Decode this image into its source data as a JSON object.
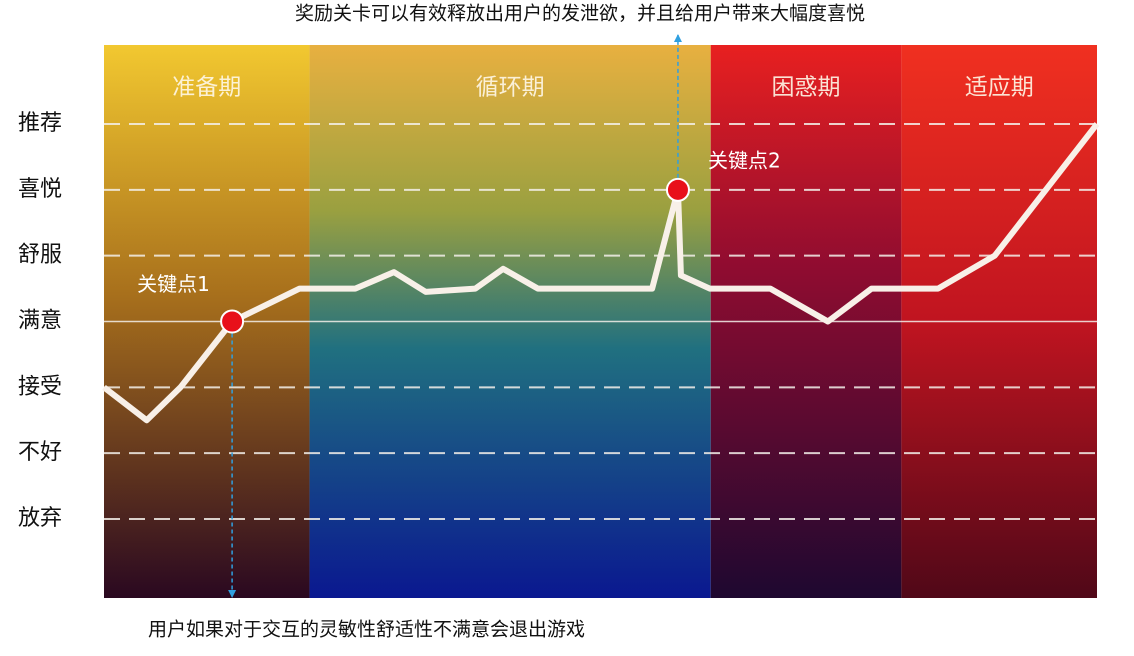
{
  "chart_data": {
    "type": "line",
    "xlim": [
      0,
      100
    ],
    "ylim": [
      -1.2,
      7.2
    ],
    "yticks": [
      {
        "value": 0,
        "label": "放弃"
      },
      {
        "value": 1,
        "label": "不好"
      },
      {
        "value": 2,
        "label": "接受"
      },
      {
        "value": 3,
        "label": "满意"
      },
      {
        "value": 4,
        "label": "舒服"
      },
      {
        "value": 5,
        "label": "喜悦"
      },
      {
        "value": 6,
        "label": "推荐"
      }
    ],
    "reference_line": 3,
    "phases": [
      {
        "name": "准备期",
        "start": 0,
        "end": 20.7
      },
      {
        "name": "循环期",
        "start": 20.7,
        "end": 61.1
      },
      {
        "name": "困惑期",
        "start": 61.1,
        "end": 80.3
      },
      {
        "name": "适应期",
        "start": 80.3,
        "end": 100
      }
    ],
    "series": [
      {
        "color": "#f8f0e8",
        "x": [
          0,
          4.3,
          7.7,
          12.9,
          19.7,
          25.3,
          29.2,
          32.4,
          37.4,
          40.2,
          43.7,
          55.2,
          57.8,
          58.1,
          61.0,
          67.1,
          72.9,
          77.3,
          84.0,
          89.7,
          100
        ],
        "values": [
          2,
          1.5,
          2,
          3,
          3.5,
          3.5,
          3.75,
          3.45,
          3.5,
          3.8,
          3.5,
          3.5,
          5,
          3.7,
          3.5,
          3.5,
          3,
          3.5,
          3.5,
          4,
          6
        ]
      }
    ],
    "key_points": [
      {
        "label": "关键点1",
        "x": 12.9,
        "y": 3,
        "annotation": "用户如果对于交互的灵敏性舒适性不满意会退出游戏"
      },
      {
        "label": "关键点2",
        "x": 57.8,
        "y": 5,
        "annotation": "奖励关卡可以有效释放出用户的发泄欲，并且给用户带来大幅度喜悦"
      }
    ]
  }
}
